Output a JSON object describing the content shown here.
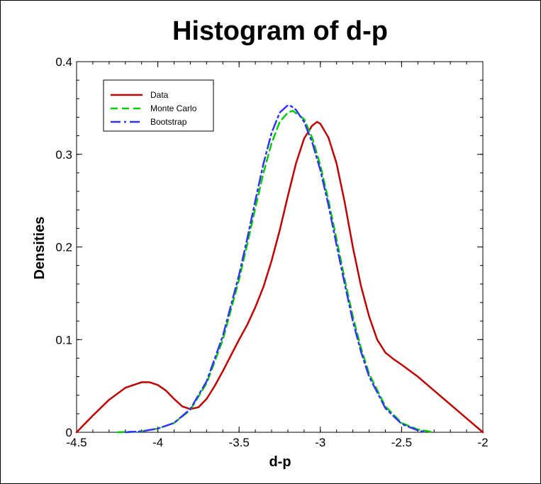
{
  "chart_data": {
    "type": "line",
    "title": "Histogram of d-p",
    "xlabel": "d-p",
    "ylabel": "Densities",
    "xlim": [
      -4.5,
      -2
    ],
    "ylim": [
      0,
      0.4
    ],
    "xticks": [
      "-4.5",
      "-4",
      "-3.5",
      "-3",
      "-2.5",
      "-2"
    ],
    "yticks": [
      "0",
      "0.1",
      "0.2",
      "0.3",
      "0.4"
    ],
    "legend_position": "top-left",
    "grid": false,
    "series": [
      {
        "name": "Data",
        "color": "#c00000",
        "style": "solid",
        "points": [
          [
            -4.5,
            0.0
          ],
          [
            -4.4,
            0.018
          ],
          [
            -4.3,
            0.035
          ],
          [
            -4.2,
            0.048
          ],
          [
            -4.1,
            0.054
          ],
          [
            -4.05,
            0.054
          ],
          [
            -4.0,
            0.051
          ],
          [
            -3.95,
            0.045
          ],
          [
            -3.9,
            0.036
          ],
          [
            -3.85,
            0.028
          ],
          [
            -3.8,
            0.025
          ],
          [
            -3.75,
            0.027
          ],
          [
            -3.7,
            0.036
          ],
          [
            -3.65,
            0.05
          ],
          [
            -3.6,
            0.066
          ],
          [
            -3.55,
            0.083
          ],
          [
            -3.5,
            0.1
          ],
          [
            -3.45,
            0.116
          ],
          [
            -3.4,
            0.135
          ],
          [
            -3.35,
            0.157
          ],
          [
            -3.3,
            0.185
          ],
          [
            -3.25,
            0.218
          ],
          [
            -3.2,
            0.255
          ],
          [
            -3.15,
            0.29
          ],
          [
            -3.1,
            0.317
          ],
          [
            -3.05,
            0.331
          ],
          [
            -3.02,
            0.335
          ],
          [
            -3.0,
            0.333
          ],
          [
            -2.95,
            0.318
          ],
          [
            -2.9,
            0.29
          ],
          [
            -2.85,
            0.248
          ],
          [
            -2.8,
            0.2
          ],
          [
            -2.75,
            0.158
          ],
          [
            -2.7,
            0.125
          ],
          [
            -2.65,
            0.1
          ],
          [
            -2.6,
            0.086
          ],
          [
            -2.55,
            0.079
          ],
          [
            -2.5,
            0.073
          ],
          [
            -2.4,
            0.06
          ],
          [
            -2.3,
            0.045
          ],
          [
            -2.2,
            0.03
          ],
          [
            -2.1,
            0.015
          ],
          [
            -2.0,
            0.0
          ]
        ]
      },
      {
        "name": "Monte Carlo",
        "color": "#00cc00",
        "style": "dashed",
        "points": [
          [
            -4.25,
            0.0
          ],
          [
            -4.1,
            0.001
          ],
          [
            -4.0,
            0.004
          ],
          [
            -3.9,
            0.01
          ],
          [
            -3.8,
            0.024
          ],
          [
            -3.7,
            0.053
          ],
          [
            -3.6,
            0.1
          ],
          [
            -3.5,
            0.165
          ],
          [
            -3.45,
            0.203
          ],
          [
            -3.4,
            0.242
          ],
          [
            -3.35,
            0.28
          ],
          [
            -3.3,
            0.312
          ],
          [
            -3.25,
            0.335
          ],
          [
            -3.2,
            0.345
          ],
          [
            -3.17,
            0.347
          ],
          [
            -3.1,
            0.338
          ],
          [
            -3.05,
            0.318
          ],
          [
            -3.0,
            0.288
          ],
          [
            -2.95,
            0.25
          ],
          [
            -2.9,
            0.208
          ],
          [
            -2.85,
            0.165
          ],
          [
            -2.8,
            0.125
          ],
          [
            -2.75,
            0.091
          ],
          [
            -2.7,
            0.063
          ],
          [
            -2.6,
            0.028
          ],
          [
            -2.5,
            0.01
          ],
          [
            -2.4,
            0.003
          ],
          [
            -2.3,
            0.0
          ]
        ]
      },
      {
        "name": "Bootstrap",
        "color": "#3333ff",
        "style": "dashdot",
        "points": [
          [
            -4.2,
            0.0
          ],
          [
            -4.1,
            0.001
          ],
          [
            -4.0,
            0.004
          ],
          [
            -3.9,
            0.01
          ],
          [
            -3.8,
            0.025
          ],
          [
            -3.7,
            0.055
          ],
          [
            -3.6,
            0.104
          ],
          [
            -3.5,
            0.17
          ],
          [
            -3.45,
            0.209
          ],
          [
            -3.4,
            0.25
          ],
          [
            -3.35,
            0.29
          ],
          [
            -3.3,
            0.323
          ],
          [
            -3.25,
            0.345
          ],
          [
            -3.2,
            0.353
          ],
          [
            -3.18,
            0.352
          ],
          [
            -3.15,
            0.348
          ],
          [
            -3.1,
            0.335
          ],
          [
            -3.05,
            0.313
          ],
          [
            -3.0,
            0.283
          ],
          [
            -2.95,
            0.245
          ],
          [
            -2.9,
            0.202
          ],
          [
            -2.85,
            0.16
          ],
          [
            -2.8,
            0.12
          ],
          [
            -2.75,
            0.087
          ],
          [
            -2.7,
            0.06
          ],
          [
            -2.6,
            0.026
          ],
          [
            -2.5,
            0.009
          ],
          [
            -2.4,
            0.002
          ],
          [
            -2.35,
            0.0
          ]
        ]
      }
    ]
  }
}
